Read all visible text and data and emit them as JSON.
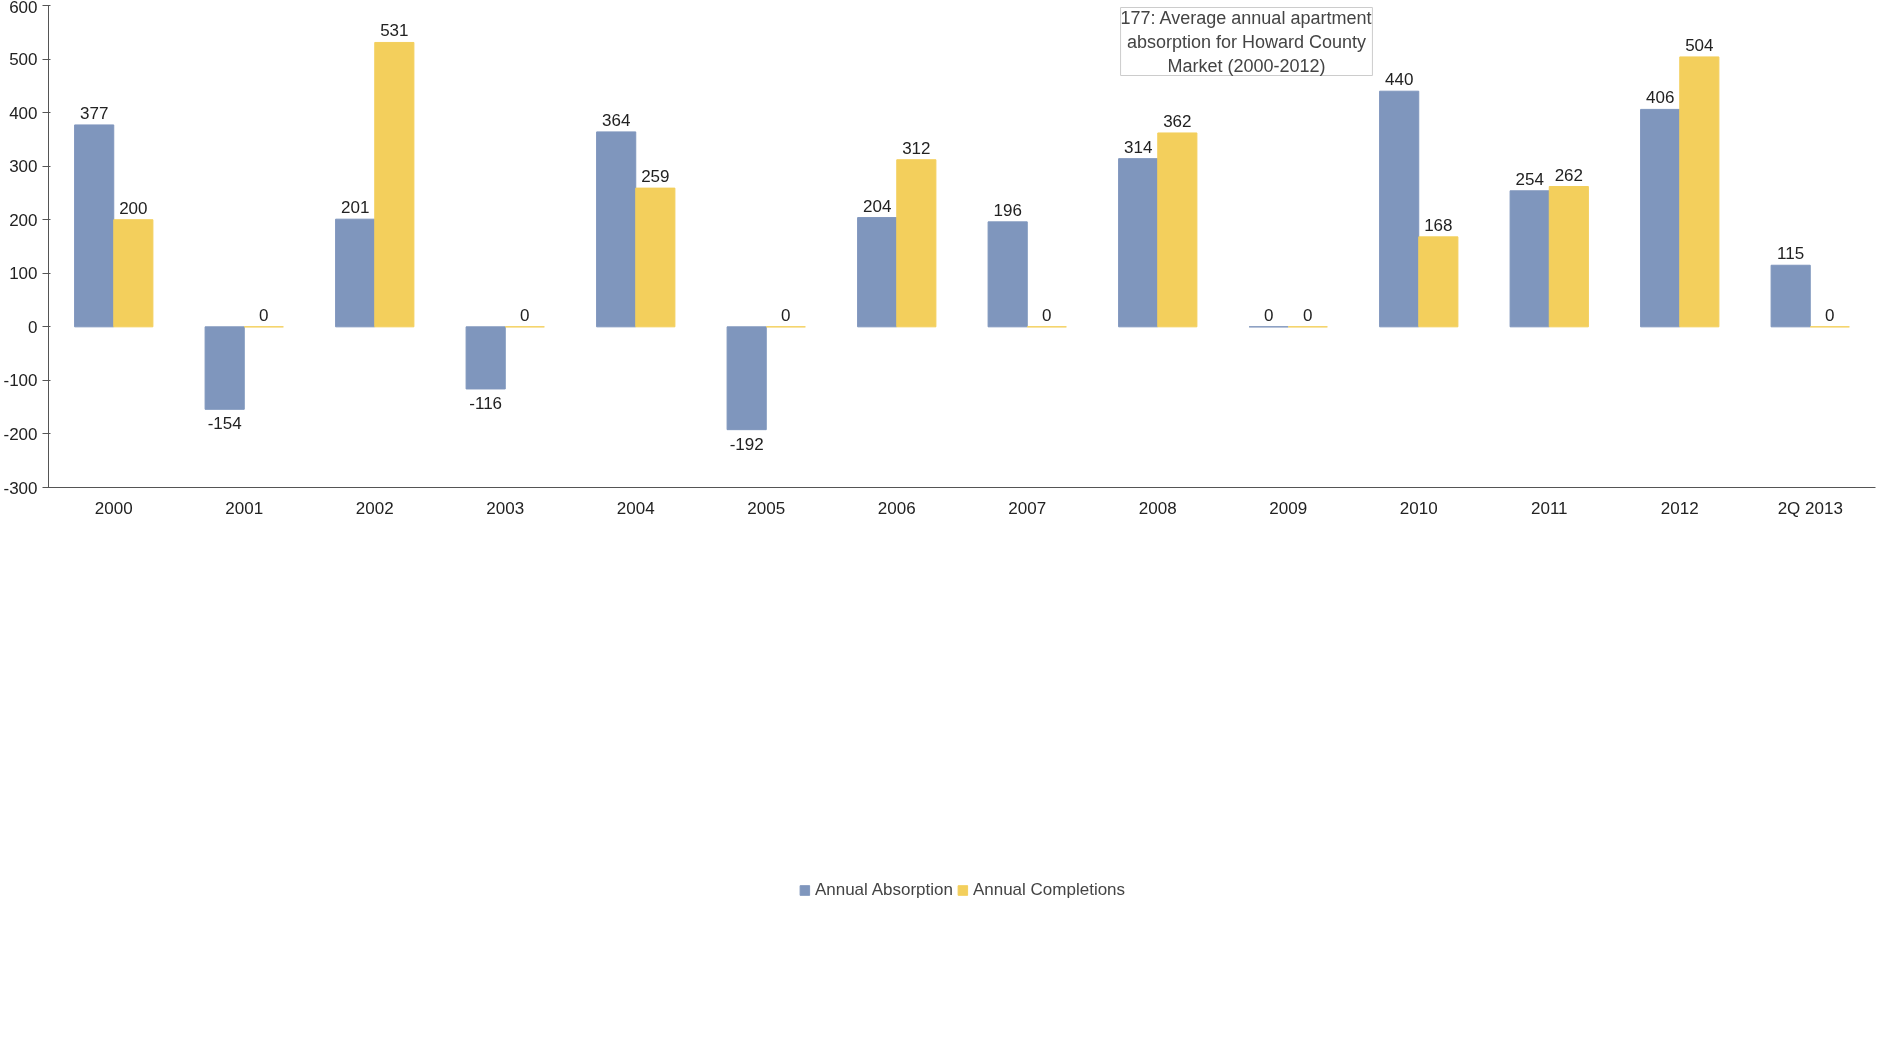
{
  "chart_data": {
    "type": "bar",
    "categories": [
      "2000",
      "2001",
      "2002",
      "2003",
      "2004",
      "2005",
      "2006",
      "2007",
      "2008",
      "2009",
      "2010",
      "2011",
      "2012",
      "2Q 2013"
    ],
    "series": [
      {
        "name": "Annual Absorption",
        "color": "#7f96bd",
        "values": [
          377,
          -154,
          201,
          -116,
          364,
          -192,
          204,
          196,
          314,
          0,
          440,
          254,
          406,
          115
        ]
      },
      {
        "name": "Annual Completions",
        "color": "#f3cf5c",
        "values": [
          200,
          0,
          531,
          0,
          259,
          0,
          312,
          0,
          362,
          0,
          168,
          262,
          504,
          0
        ]
      }
    ],
    "ylim": [
      -300,
      600
    ],
    "yticks": [
      -300,
      -200,
      -100,
      0,
      100,
      200,
      300,
      400,
      500,
      600
    ],
    "annotations": [
      "177: Average annual apartment absorption for Howard County Market (2000-2012)"
    ],
    "data_labels": true,
    "grid": false,
    "legend": "bottom"
  }
}
